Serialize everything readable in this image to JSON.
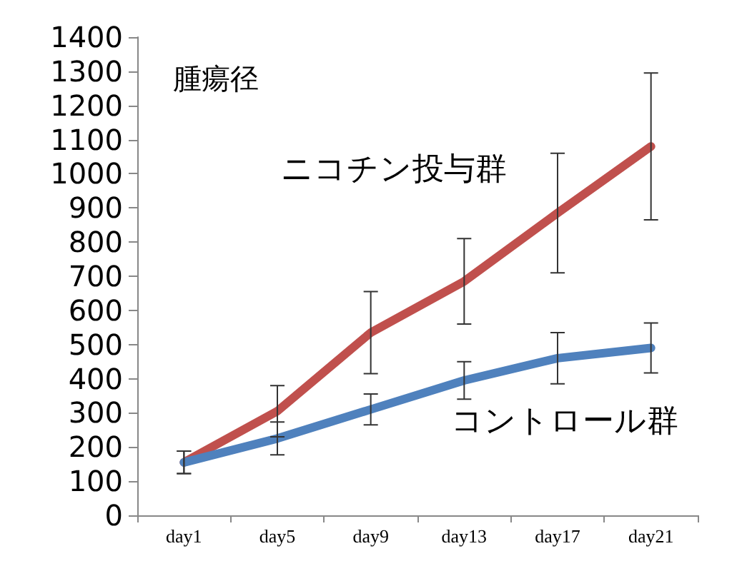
{
  "chart_data": {
    "type": "line",
    "title": "腫瘍径",
    "categories": [
      "day1",
      "day5",
      "day9",
      "day13",
      "day17",
      "day21"
    ],
    "series": [
      {
        "name": "ニコチン投与群",
        "color": "#c0504d",
        "values": [
          155,
          305,
          535,
          685,
          885,
          1080
        ],
        "errors": [
          33,
          75,
          120,
          125,
          175,
          215
        ]
      },
      {
        "name": "コントロール群",
        "color": "#4f81bd",
        "values": [
          155,
          225,
          310,
          395,
          460,
          490
        ],
        "errors": [
          33,
          48,
          45,
          55,
          75,
          73
        ]
      }
    ],
    "ylim": [
      0,
      1400
    ],
    "yticks": [
      0,
      100,
      200,
      300,
      400,
      500,
      600,
      700,
      800,
      900,
      1000,
      1100,
      1200,
      1300,
      1400
    ],
    "grid": false,
    "legend": false,
    "line_style": "solid"
  }
}
